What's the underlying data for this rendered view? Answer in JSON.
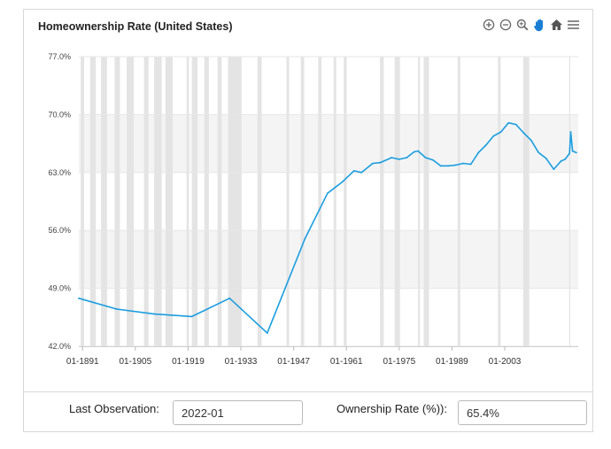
{
  "chart_data": {
    "type": "line",
    "title": "Homeownership Rate (United States)",
    "xlabel": "",
    "ylabel": "",
    "y_ticks": [
      "77.0%",
      "70.0%",
      "63.0%",
      "56.0%",
      "49.0%",
      "42.0%"
    ],
    "x_ticks": [
      "01-1891",
      "01-1905",
      "01-1919",
      "01-1933",
      "01-1947",
      "01-1961",
      "01-1975",
      "01-1989",
      "01-2003"
    ],
    "ylim": [
      42,
      77
    ],
    "xlim": [
      1890,
      2022.5
    ],
    "grid": true,
    "legend": "none",
    "recession_bands": [
      [
        1890.5,
        1891.4
      ],
      [
        1893.0,
        1894.5
      ],
      [
        1895.9,
        1897.5
      ],
      [
        1899.5,
        1900.9
      ],
      [
        1902.7,
        1904.6
      ],
      [
        1907.3,
        1908.5
      ],
      [
        1910.0,
        1912.0
      ],
      [
        1913.0,
        1914.9
      ],
      [
        1918.6,
        1919.2
      ],
      [
        1920.0,
        1921.5
      ],
      [
        1923.3,
        1924.5
      ],
      [
        1926.8,
        1927.9
      ],
      [
        1929.6,
        1933.2
      ],
      [
        1937.4,
        1938.5
      ],
      [
        1945.1,
        1945.8
      ],
      [
        1948.9,
        1949.8
      ],
      [
        1953.5,
        1954.4
      ],
      [
        1957.6,
        1958.3
      ],
      [
        1960.3,
        1961.1
      ],
      [
        1969.9,
        1970.9
      ],
      [
        1973.8,
        1975.2
      ],
      [
        1980.0,
        1980.5
      ],
      [
        1981.5,
        1982.9
      ],
      [
        1990.5,
        1991.2
      ],
      [
        2001.2,
        2001.9
      ],
      [
        2007.9,
        2009.5
      ],
      [
        2020.1,
        2020.4
      ]
    ],
    "series": [
      {
        "color": "#1a9de0",
        "x": [
          1890,
          1900,
          1910,
          1920,
          1930,
          1940,
          1950,
          1956,
          1960,
          1963,
          1965,
          1968,
          1970,
          1973,
          1975,
          1977,
          1979,
          1980,
          1982,
          1984,
          1986,
          1988,
          1990,
          1992,
          1994,
          1996,
          1998,
          2000,
          2002,
          2004,
          2006,
          2008,
          2010,
          2012,
          2014,
          2016,
          2018,
          2019,
          2020.2,
          2020.5,
          2021,
          2022
        ],
        "y": [
          47.8,
          46.5,
          45.9,
          45.6,
          47.8,
          43.6,
          55.0,
          60.5,
          61.9,
          63.2,
          63.0,
          64.1,
          64.2,
          64.8,
          64.6,
          64.8,
          65.5,
          65.6,
          64.8,
          64.5,
          63.8,
          63.8,
          63.9,
          64.1,
          64.0,
          65.4,
          66.3,
          67.4,
          67.9,
          69.0,
          68.8,
          67.8,
          66.9,
          65.4,
          64.7,
          63.4,
          64.4,
          64.6,
          65.3,
          67.9,
          65.6,
          65.4
        ]
      }
    ]
  },
  "toolbar": {
    "icons": [
      "zoom-in-icon",
      "zoom-out-icon",
      "magnify-icon",
      "pan-hand-icon",
      "home-icon",
      "menu-icon"
    ]
  },
  "footer": {
    "last_observation_label": "Last Observation:",
    "last_observation_value": "2022-01",
    "ownership_label": "Ownership Rate (%)):",
    "ownership_value": "65.4%"
  },
  "colors": {
    "line": "#1a9de0",
    "recession_band": "#e4e4e4",
    "grid_band": "#f4f4f4",
    "active_icon": "#1a7fd4"
  }
}
